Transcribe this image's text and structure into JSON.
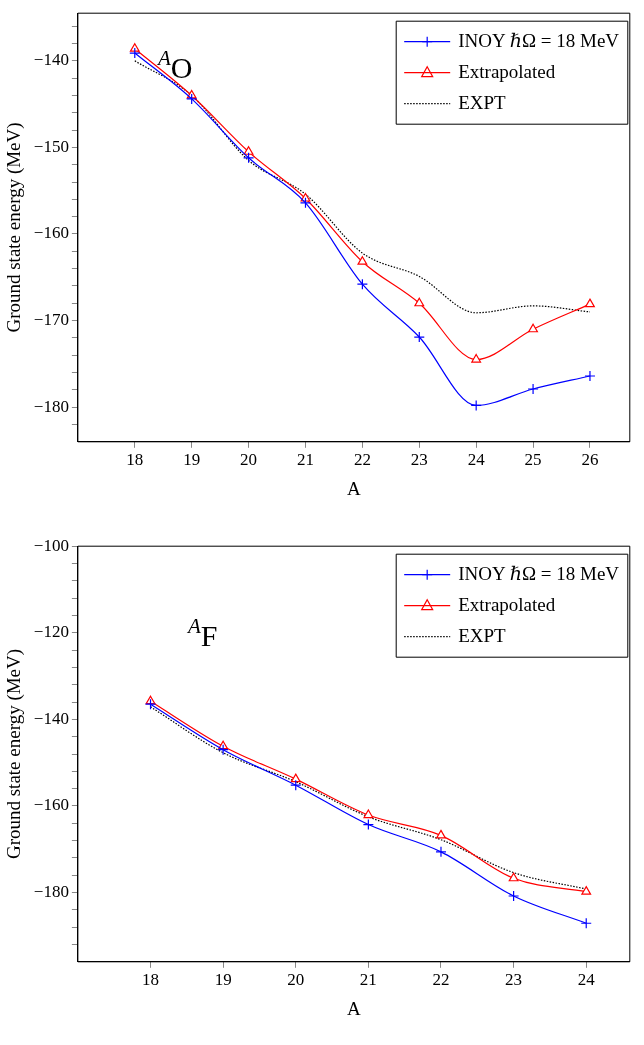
{
  "chart_data": [
    {
      "type": "line",
      "xlabel": "A",
      "ylabel": "Ground state energy (MeV)",
      "annotations": [
        "$^{A}$O"
      ],
      "legend": "top right",
      "grid": false,
      "line_style": "solid",
      "x": [
        18,
        19,
        20,
        21,
        22,
        23,
        24,
        25,
        26
      ],
      "xlim": [
        17,
        26.7
      ],
      "xticks": [
        18,
        19,
        20,
        21,
        22,
        23,
        24,
        25,
        26
      ],
      "ylim": [
        -184,
        -134.5
      ],
      "yticks": [
        {
          "value": -182,
          "label": null
        },
        -180,
        {
          "value": -178,
          "label": null
        },
        {
          "value": -176,
          "label": null
        },
        {
          "value": -174,
          "label": null
        },
        {
          "value": -172,
          "label": null
        },
        -170,
        {
          "value": -168,
          "label": null
        },
        {
          "value": -166,
          "label": null
        },
        {
          "value": -164,
          "label": null
        },
        {
          "value": -162,
          "label": null
        },
        -160,
        {
          "value": -158,
          "label": null
        },
        {
          "value": -156,
          "label": null
        },
        {
          "value": -154,
          "label": null
        },
        {
          "value": -152,
          "label": null
        },
        -150,
        {
          "value": -148,
          "label": null
        },
        {
          "value": -146,
          "label": null
        },
        {
          "value": -144,
          "label": null
        },
        {
          "value": -142,
          "label": null
        },
        -140,
        {
          "value": -138,
          "label": null
        },
        {
          "value": -136,
          "label": null
        }
      ],
      "series": [
        {
          "name": "INOY ℏΩ = 18 MeV",
          "color": "#0000ff",
          "marker": "cross",
          "values": [
            -139.1,
            -144.4,
            -151.2,
            -156.4,
            -165.8,
            -171.9,
            -179.8,
            -177.9,
            -176.4
          ]
        },
        {
          "name": "Extrapolated",
          "color": "#ff0000",
          "marker": "triangle",
          "values": [
            -138.6,
            -144.0,
            -150.5,
            -155.9,
            -163.2,
            -168.0,
            -174.5,
            -171.0,
            -168.1
          ]
        },
        {
          "name": "EXPT",
          "color": "#000000",
          "marker": "none",
          "line_style": "dotted",
          "values": [
            -140.0,
            -144.0,
            -151.5,
            -155.4,
            -162.2,
            -164.9,
            -169.1,
            -168.3,
            -169.0
          ]
        }
      ]
    },
    {
      "type": "line",
      "xlabel": "A",
      "ylabel": "Ground state energy (MeV)",
      "annotations": [
        "$^{A}$F"
      ],
      "legend": "top right",
      "grid": false,
      "line_style": "solid",
      "x": [
        18,
        19,
        20,
        21,
        22,
        23,
        24
      ],
      "xlim": [
        17,
        24.6
      ],
      "xticks": [
        18,
        19,
        20,
        21,
        22,
        23,
        24
      ],
      "ylim": [
        -196,
        -100
      ],
      "yticks": [
        {
          "value": -192,
          "label": null
        },
        {
          "value": -188,
          "label": null
        },
        {
          "value": -184,
          "label": null
        },
        -180,
        {
          "value": -176,
          "label": null
        },
        {
          "value": -172,
          "label": null
        },
        {
          "value": -168,
          "label": null
        },
        {
          "value": -164,
          "label": null
        },
        -160,
        {
          "value": -156,
          "label": null
        },
        {
          "value": -152,
          "label": null
        },
        {
          "value": -148,
          "label": null
        },
        {
          "value": -144,
          "label": null
        },
        -140,
        {
          "value": -136,
          "label": null
        },
        {
          "value": -132,
          "label": null
        },
        {
          "value": -128,
          "label": null
        },
        {
          "value": -124,
          "label": null
        },
        -120,
        {
          "value": -116,
          "label": null
        },
        {
          "value": -112,
          "label": null
        },
        {
          "value": -108,
          "label": null
        },
        {
          "value": -104,
          "label": null
        },
        -100
      ],
      "series": [
        {
          "name": "INOY ℏΩ = 18 MeV",
          "color": "#0000ff",
          "marker": "cross",
          "values": [
            -136.5,
            -147.0,
            -155.2,
            -164.3,
            -170.6,
            -180.8,
            -187.1
          ]
        },
        {
          "name": "Extrapolated",
          "color": "#ff0000",
          "marker": "triangle",
          "values": [
            -135.8,
            -146.2,
            -153.8,
            -162.1,
            -166.8,
            -176.7,
            -179.8
          ]
        },
        {
          "name": "EXPT",
          "color": "#000000",
          "marker": "none",
          "line_style": "dotted",
          "values": [
            -137.1,
            -147.7,
            -154.4,
            -162.5,
            -167.8,
            -175.4,
            -179.2
          ]
        }
      ]
    }
  ]
}
